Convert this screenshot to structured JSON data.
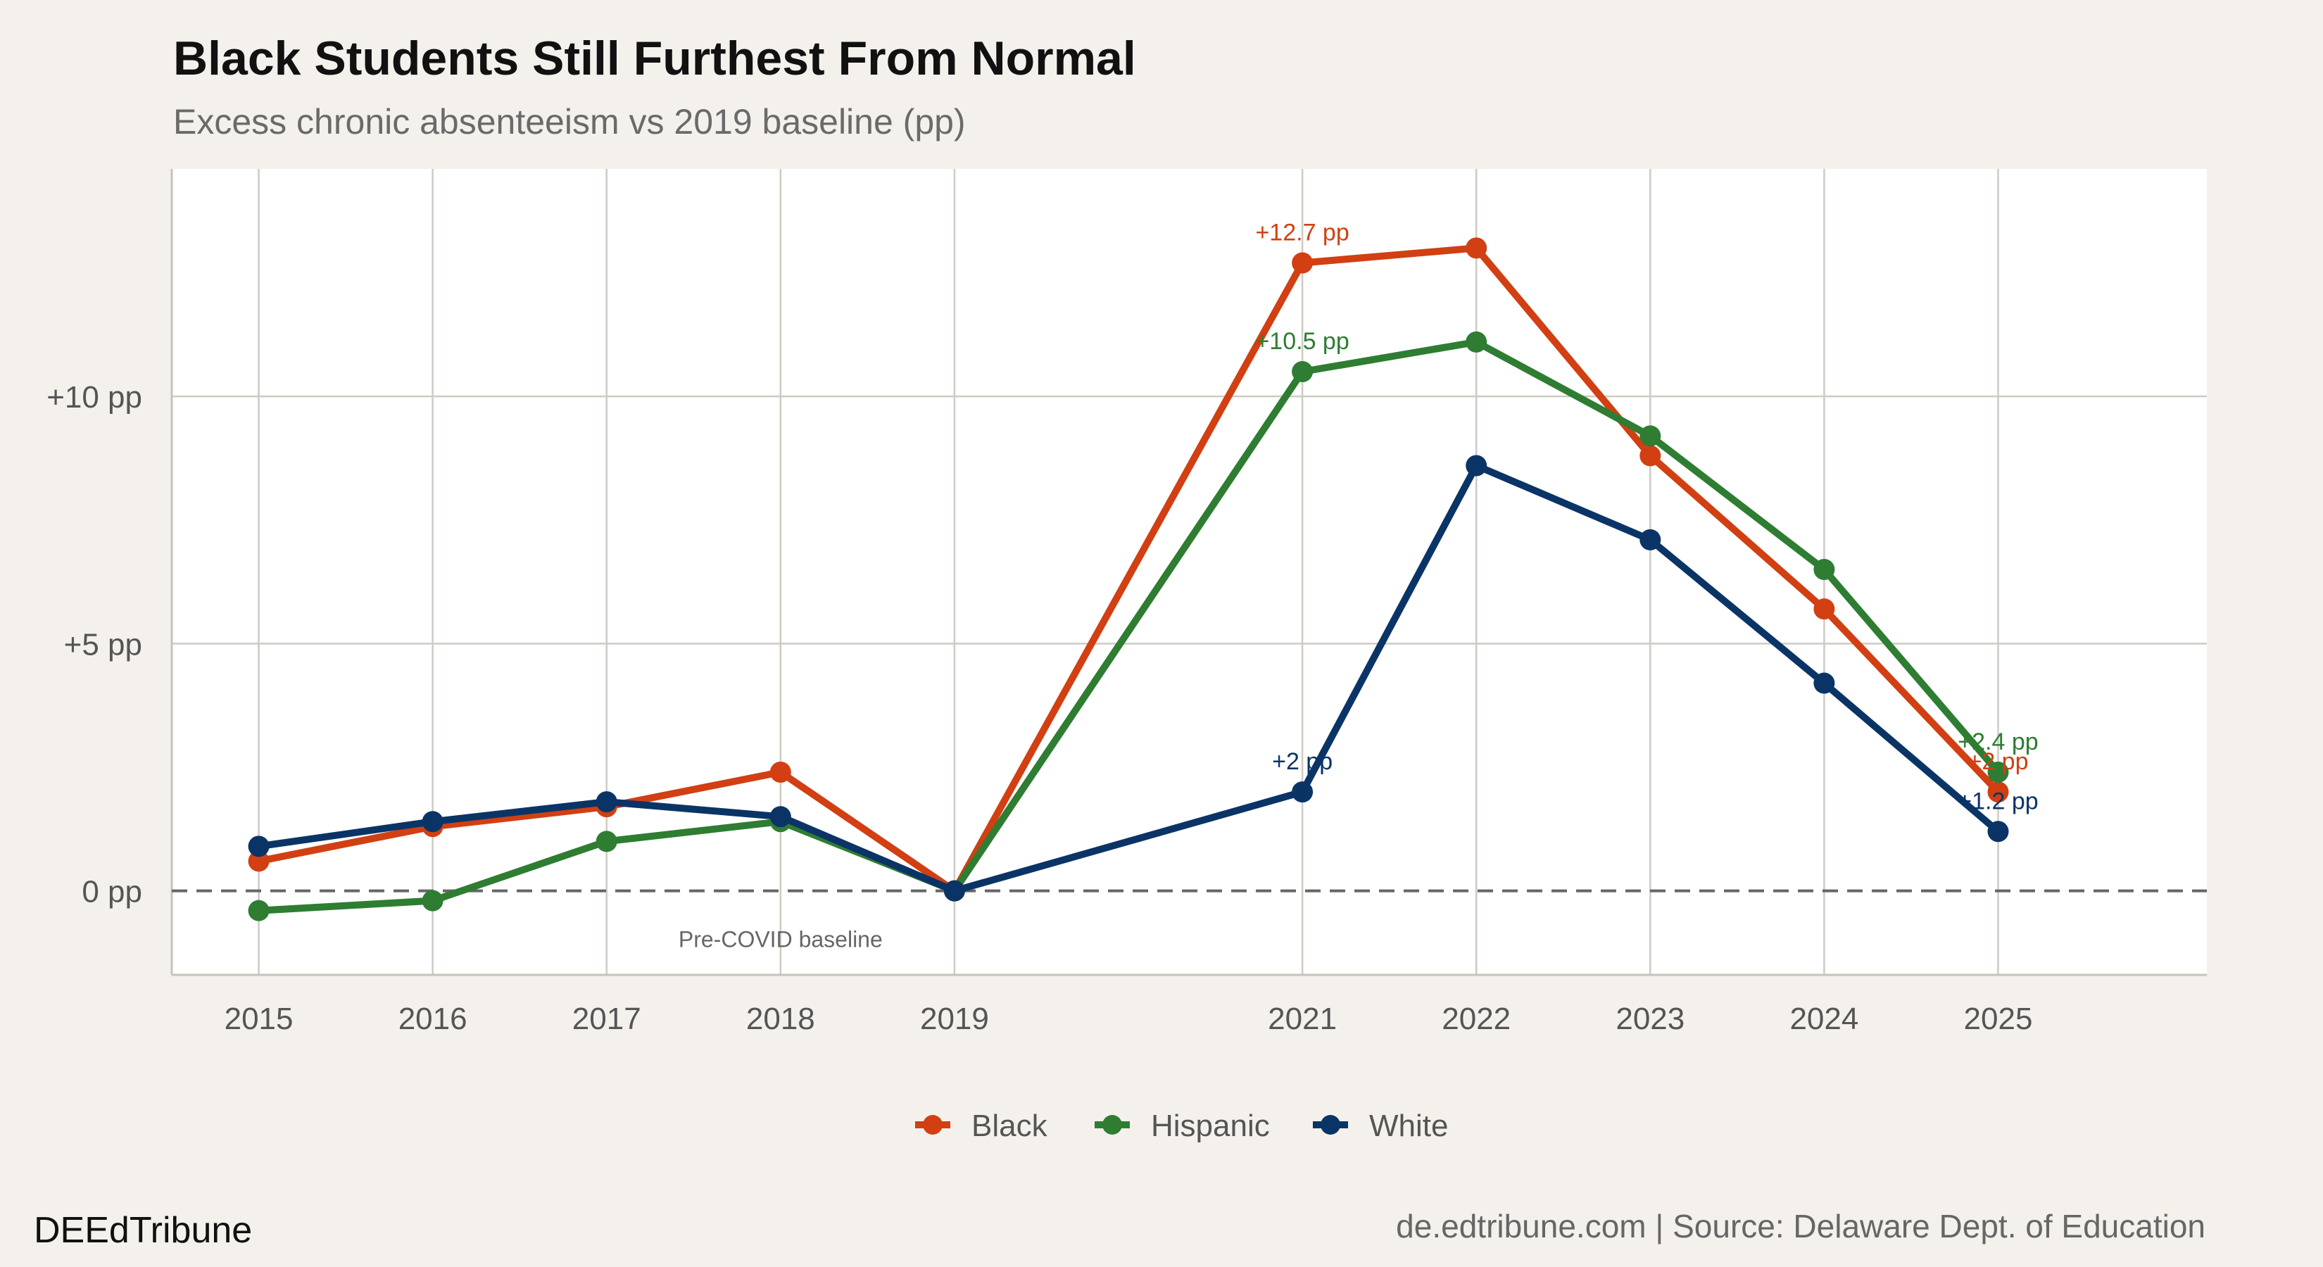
{
  "header": {
    "title": "Black Students Still Furthest From Normal",
    "subtitle": "Excess chronic absenteeism vs 2019 baseline (pp)"
  },
  "footer": {
    "brand": "DEEdTribune",
    "source": "de.edtribune.com | Source: Delaware Dept. of Education"
  },
  "chart_data": {
    "type": "line",
    "title": "Black Students Still Furthest From Normal",
    "subtitle": "Excess chronic absenteeism vs 2019 baseline (pp)",
    "xlabel": "",
    "ylabel": "",
    "x": [
      2015,
      2016,
      2017,
      2018,
      2019,
      2021,
      2022,
      2023,
      2024,
      2025
    ],
    "xlim": [
      2014.5,
      2026.2
    ],
    "ylim": [
      -1.7,
      14.6
    ],
    "y_ticks": [
      0,
      5,
      10
    ],
    "y_tick_labels": [
      "0 pp",
      "+5 pp",
      "+10 pp"
    ],
    "x_tick_labels": [
      "2015",
      "2016",
      "2017",
      "2018",
      "2019",
      "2021",
      "2022",
      "2023",
      "2024",
      "2025"
    ],
    "grid": true,
    "legend_position": "bottom",
    "baseline": {
      "y": 0,
      "style": "dashed",
      "label": "Pre-COVID baseline",
      "label_x": 2018
    },
    "series": [
      {
        "name": "Black",
        "color": "#d13f12",
        "values": [
          0.6,
          1.3,
          1.7,
          2.4,
          0,
          12.7,
          13.0,
          8.8,
          5.7,
          2.0
        ],
        "labels": [
          {
            "x": 2021,
            "y": 12.7,
            "text": "+12.7 pp"
          },
          {
            "x": 2025,
            "y": 2.0,
            "text": "+2 pp"
          }
        ]
      },
      {
        "name": "Hispanic",
        "color": "#2e7d32",
        "values": [
          -0.4,
          -0.2,
          1.0,
          1.4,
          0,
          10.5,
          11.1,
          9.2,
          6.5,
          2.4
        ],
        "labels": [
          {
            "x": 2021,
            "y": 10.5,
            "text": "+10.5 pp"
          },
          {
            "x": 2025,
            "y": 2.4,
            "text": "+2.4 pp"
          }
        ]
      },
      {
        "name": "White",
        "color": "#0b3466",
        "values": [
          0.9,
          1.4,
          1.8,
          1.5,
          0,
          2.0,
          8.6,
          7.1,
          4.2,
          1.2
        ],
        "labels": [
          {
            "x": 2021,
            "y": 2.0,
            "text": "+2 pp"
          },
          {
            "x": 2025,
            "y": 1.2,
            "text": "+1.2 pp"
          }
        ]
      }
    ]
  }
}
